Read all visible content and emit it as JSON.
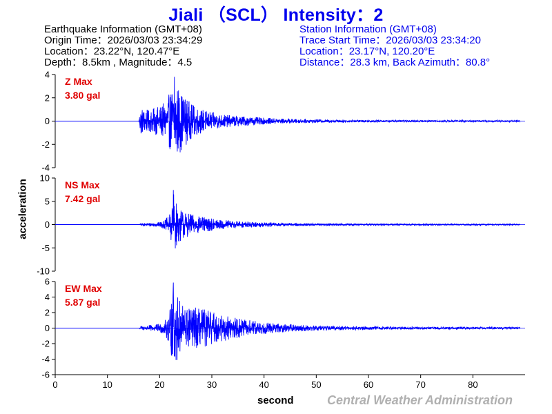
{
  "title": "Jiali （SCL） Intensity：2",
  "earthquake_info": {
    "heading": "Earthquake Information  (GMT+08)",
    "origin_time": "Origin Time：2026/03/03 23:34:29",
    "location": "Location：23.22°N, 120.47°E",
    "depth_magnitude": "Depth：8.5km , Magnitude：4.5"
  },
  "station_info": {
    "heading": "Station Information  (GMT+08)",
    "trace_start": "Trace Start Time：2026/03/03 23:34:20",
    "location": "Location：23.17°N, 120.20°E",
    "distance_azimuth": "Distance：28.3 km, Back Azimuth：80.8°"
  },
  "credit": "Central Weather Administration",
  "colors": {
    "title": "#0000ee",
    "trace": "#0000ff",
    "max_label": "#e00000",
    "credit": "#b0b0b0",
    "axis": "#000000"
  },
  "chart_data": {
    "type": "line",
    "xlabel": "second",
    "ylabel": "acceleration",
    "xlim": [
      0,
      90
    ],
    "x_ticks": [
      0,
      10,
      20,
      30,
      40,
      50,
      60,
      70,
      80
    ],
    "grid": false,
    "legend": "none",
    "panels": [
      {
        "component": "Z",
        "max_title": "Z Max",
        "max_value": "3.80 gal",
        "ylim": [
          -4,
          4
        ],
        "y_ticks": [
          -4,
          -2,
          0,
          2,
          4
        ],
        "peak": 3.8,
        "envelope": {
          "t": [
            0,
            16,
            16.3,
            17,
            18,
            20,
            21,
            22,
            22.8,
            23.3,
            24,
            25,
            26,
            28,
            30,
            33,
            36,
            40,
            45,
            50,
            60,
            70,
            80,
            89
          ],
          "amp": [
            0,
            0,
            1.4,
            1.1,
            1.0,
            1.4,
            1.7,
            2.6,
            3.8,
            3.4,
            2.8,
            2.2,
            1.6,
            1.1,
            0.8,
            0.55,
            0.45,
            0.3,
            0.2,
            0.15,
            0.1,
            0.08,
            0.08,
            0.07
          ]
        }
      },
      {
        "component": "NS",
        "max_title": "NS Max",
        "max_value": "7.42 gal",
        "ylim": [
          -10,
          10
        ],
        "y_ticks": [
          -10,
          -5,
          0,
          5,
          10
        ],
        "peak": 7.42,
        "envelope": {
          "t": [
            0,
            16,
            16.5,
            18,
            20,
            21,
            22,
            22.6,
            23.2,
            24,
            25,
            26,
            28,
            30,
            33,
            36,
            40,
            45,
            50,
            60,
            70,
            80,
            89
          ],
          "amp": [
            0,
            0,
            0.3,
            0.4,
            0.6,
            1.0,
            2.5,
            7.4,
            5.0,
            3.8,
            3.0,
            2.4,
            1.8,
            1.4,
            1.0,
            0.75,
            0.5,
            0.35,
            0.28,
            0.2,
            0.18,
            0.15,
            0.14
          ]
        }
      },
      {
        "component": "EW",
        "max_title": "EW Max",
        "max_value": "5.87 gal",
        "ylim": [
          -6,
          6
        ],
        "y_ticks": [
          -6,
          -4,
          -2,
          0,
          2,
          4,
          6
        ],
        "peak": 5.87,
        "envelope": {
          "t": [
            0,
            16,
            16.5,
            18,
            20,
            21,
            22,
            22.6,
            23.2,
            24,
            25,
            27,
            29,
            31,
            34,
            37,
            40,
            45,
            50,
            60,
            70,
            80,
            89
          ],
          "amp": [
            0,
            0,
            0.3,
            0.4,
            0.6,
            1.0,
            2.5,
            5.87,
            4.8,
            3.6,
            3.0,
            2.8,
            2.5,
            2.0,
            1.5,
            1.1,
            0.8,
            0.5,
            0.35,
            0.22,
            0.18,
            0.15,
            0.14
          ]
        }
      }
    ]
  }
}
